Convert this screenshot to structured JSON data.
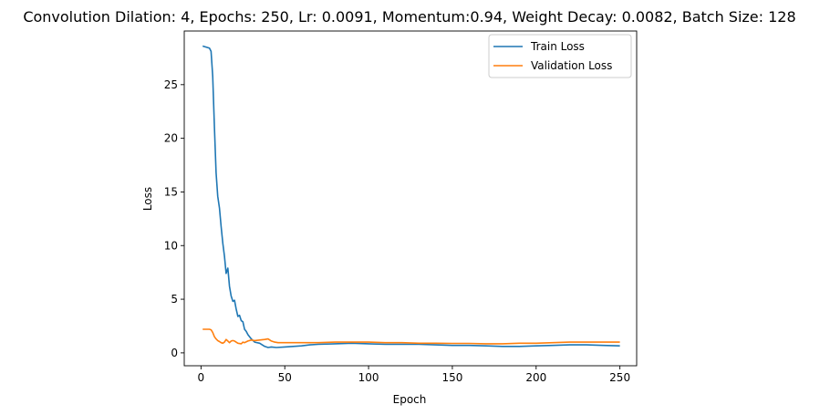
{
  "chart_data": {
    "type": "line",
    "title": "Convolution Dilation: 4, Epochs: 250, Lr: 0.0091, Momentum:0.94, Weight Decay: 0.0082, Batch Size: 128",
    "xlabel": "Epoch",
    "ylabel": "Loss",
    "xlim": [
      -10,
      260
    ],
    "ylim": [
      -1.2,
      30.0
    ],
    "xticks": [
      0,
      50,
      100,
      150,
      200,
      250
    ],
    "yticks": [
      0,
      5,
      10,
      15,
      20,
      25
    ],
    "grid": false,
    "legend_position": "upper right",
    "series": [
      {
        "name": "Train Loss",
        "color": "#1f77b4",
        "x": [
          1,
          3,
          5,
          6,
          7,
          8,
          9,
          10,
          11,
          12,
          13,
          14,
          15,
          16,
          17,
          18,
          19,
          20,
          21,
          22,
          23,
          24,
          25,
          26,
          27,
          28,
          30,
          32,
          35,
          38,
          40,
          42,
          45,
          50,
          55,
          60,
          65,
          70,
          80,
          90,
          100,
          110,
          120,
          130,
          140,
          150,
          160,
          170,
          180,
          190,
          200,
          210,
          220,
          230,
          240,
          250
        ],
        "values": [
          28.6,
          28.5,
          28.4,
          28.1,
          25.8,
          21.0,
          16.8,
          14.6,
          13.5,
          11.8,
          10.2,
          9.0,
          7.4,
          7.9,
          6.2,
          5.3,
          4.8,
          4.9,
          4.1,
          3.4,
          3.5,
          3.0,
          2.9,
          2.2,
          2.0,
          1.7,
          1.3,
          1.0,
          0.9,
          0.6,
          0.5,
          0.55,
          0.5,
          0.55,
          0.6,
          0.65,
          0.75,
          0.8,
          0.85,
          0.9,
          0.85,
          0.8,
          0.8,
          0.8,
          0.75,
          0.7,
          0.7,
          0.65,
          0.6,
          0.6,
          0.65,
          0.7,
          0.75,
          0.75,
          0.7,
          0.65
        ]
      },
      {
        "name": "Validation Loss",
        "color": "#ff7f0e",
        "x": [
          1,
          3,
          5,
          6,
          7,
          8,
          9,
          10,
          11,
          12,
          13,
          14,
          15,
          16,
          17,
          18,
          19,
          20,
          22,
          24,
          25,
          26,
          28,
          30,
          32,
          35,
          38,
          40,
          42,
          44,
          46,
          50,
          60,
          70,
          80,
          90,
          100,
          110,
          120,
          130,
          140,
          150,
          160,
          170,
          180,
          190,
          200,
          210,
          220,
          230,
          240,
          250
        ],
        "values": [
          2.2,
          2.2,
          2.2,
          2.15,
          1.9,
          1.5,
          1.3,
          1.15,
          1.05,
          0.95,
          0.9,
          1.0,
          1.25,
          1.1,
          0.95,
          1.1,
          1.15,
          1.1,
          0.9,
          0.85,
          1.0,
          0.95,
          1.1,
          1.2,
          1.15,
          1.2,
          1.25,
          1.3,
          1.1,
          1.0,
          0.95,
          0.95,
          0.95,
          0.95,
          1.0,
          1.0,
          1.0,
          0.95,
          0.95,
          0.9,
          0.9,
          0.88,
          0.88,
          0.85,
          0.85,
          0.9,
          0.9,
          0.95,
          1.0,
          1.0,
          1.0,
          1.0
        ]
      }
    ]
  }
}
